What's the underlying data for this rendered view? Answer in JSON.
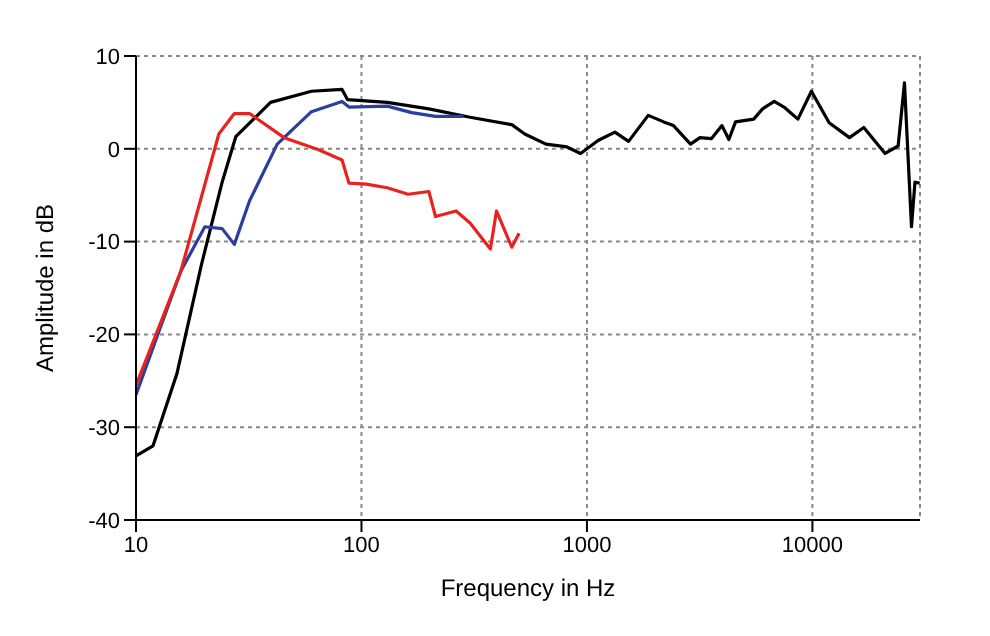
{
  "chart_data": {
    "type": "line",
    "xlabel": "Frequency in Hz",
    "ylabel": "Amplitude in dB",
    "log": "x",
    "xlim": [
      10,
      30000
    ],
    "xticks": [
      10,
      100,
      1000,
      10000
    ],
    "ylim": [
      -40,
      10
    ],
    "yticks": [
      -40,
      -30,
      -20,
      -10,
      0,
      10
    ],
    "grid": true,
    "marker": "none",
    "line_style": "solid",
    "series": [
      {
        "color": "#000000",
        "x": [
          10,
          11.9,
          15.2,
          19.5,
          24.1,
          27.7,
          39.5,
          60,
          82,
          86.7,
          130,
          199,
          303,
          464,
          530,
          658,
          815,
          937,
          1120,
          1330,
          1530,
          1870,
          2190,
          2420,
          2880,
          3170,
          3570,
          3970,
          4260,
          4560,
          5490,
          6010,
          6770,
          7480,
          8620,
          9900,
          11860,
          14600,
          16900,
          21000,
          24000,
          25600,
          27500,
          28500,
          29900
        ],
        "values": [
          -33.1,
          -32,
          -24.2,
          -12.5,
          -3.6,
          1.3,
          5,
          6.2,
          6.4,
          5.3,
          5,
          4.3,
          3.4,
          2.6,
          1.6,
          0.5,
          0.2,
          -0.5,
          0.9,
          1.8,
          0.8,
          3.6,
          2.9,
          2.5,
          0.5,
          1.2,
          1.1,
          2.5,
          1,
          2.9,
          3.2,
          4.3,
          5.1,
          4.5,
          3.2,
          6.2,
          2.8,
          1.2,
          2.3,
          -0.5,
          0.3,
          7.1,
          -8.4,
          -3.6,
          -3.7
        ]
      },
      {
        "color": "#2b3f9e",
        "x": [
          10,
          15.8,
          20.2,
          24.1,
          27.3,
          31.9,
          42.3,
          60,
          82,
          88,
          130,
          167,
          213,
          283
        ],
        "values": [
          -26.5,
          -13.2,
          -8.4,
          -8.6,
          -10.3,
          -5.6,
          0.5,
          4,
          5.1,
          4.5,
          4.6,
          3.9,
          3.5,
          3.5
        ]
      },
      {
        "color": "#e8231f",
        "x": [
          10,
          15.8,
          23.3,
          27.3,
          31.9,
          45.4,
          64.6,
          82,
          88,
          105,
          130,
          161,
          199,
          213,
          263,
          303,
          373,
          397,
          464,
          500
        ],
        "values": [
          -25.5,
          -13.2,
          1.6,
          3.8,
          3.8,
          1.2,
          -0.1,
          -1.2,
          -3.7,
          -3.8,
          -4.2,
          -4.9,
          -4.6,
          -7.3,
          -6.7,
          -8,
          -10.8,
          -6.7,
          -10.6,
          -9.1
        ]
      }
    ]
  }
}
